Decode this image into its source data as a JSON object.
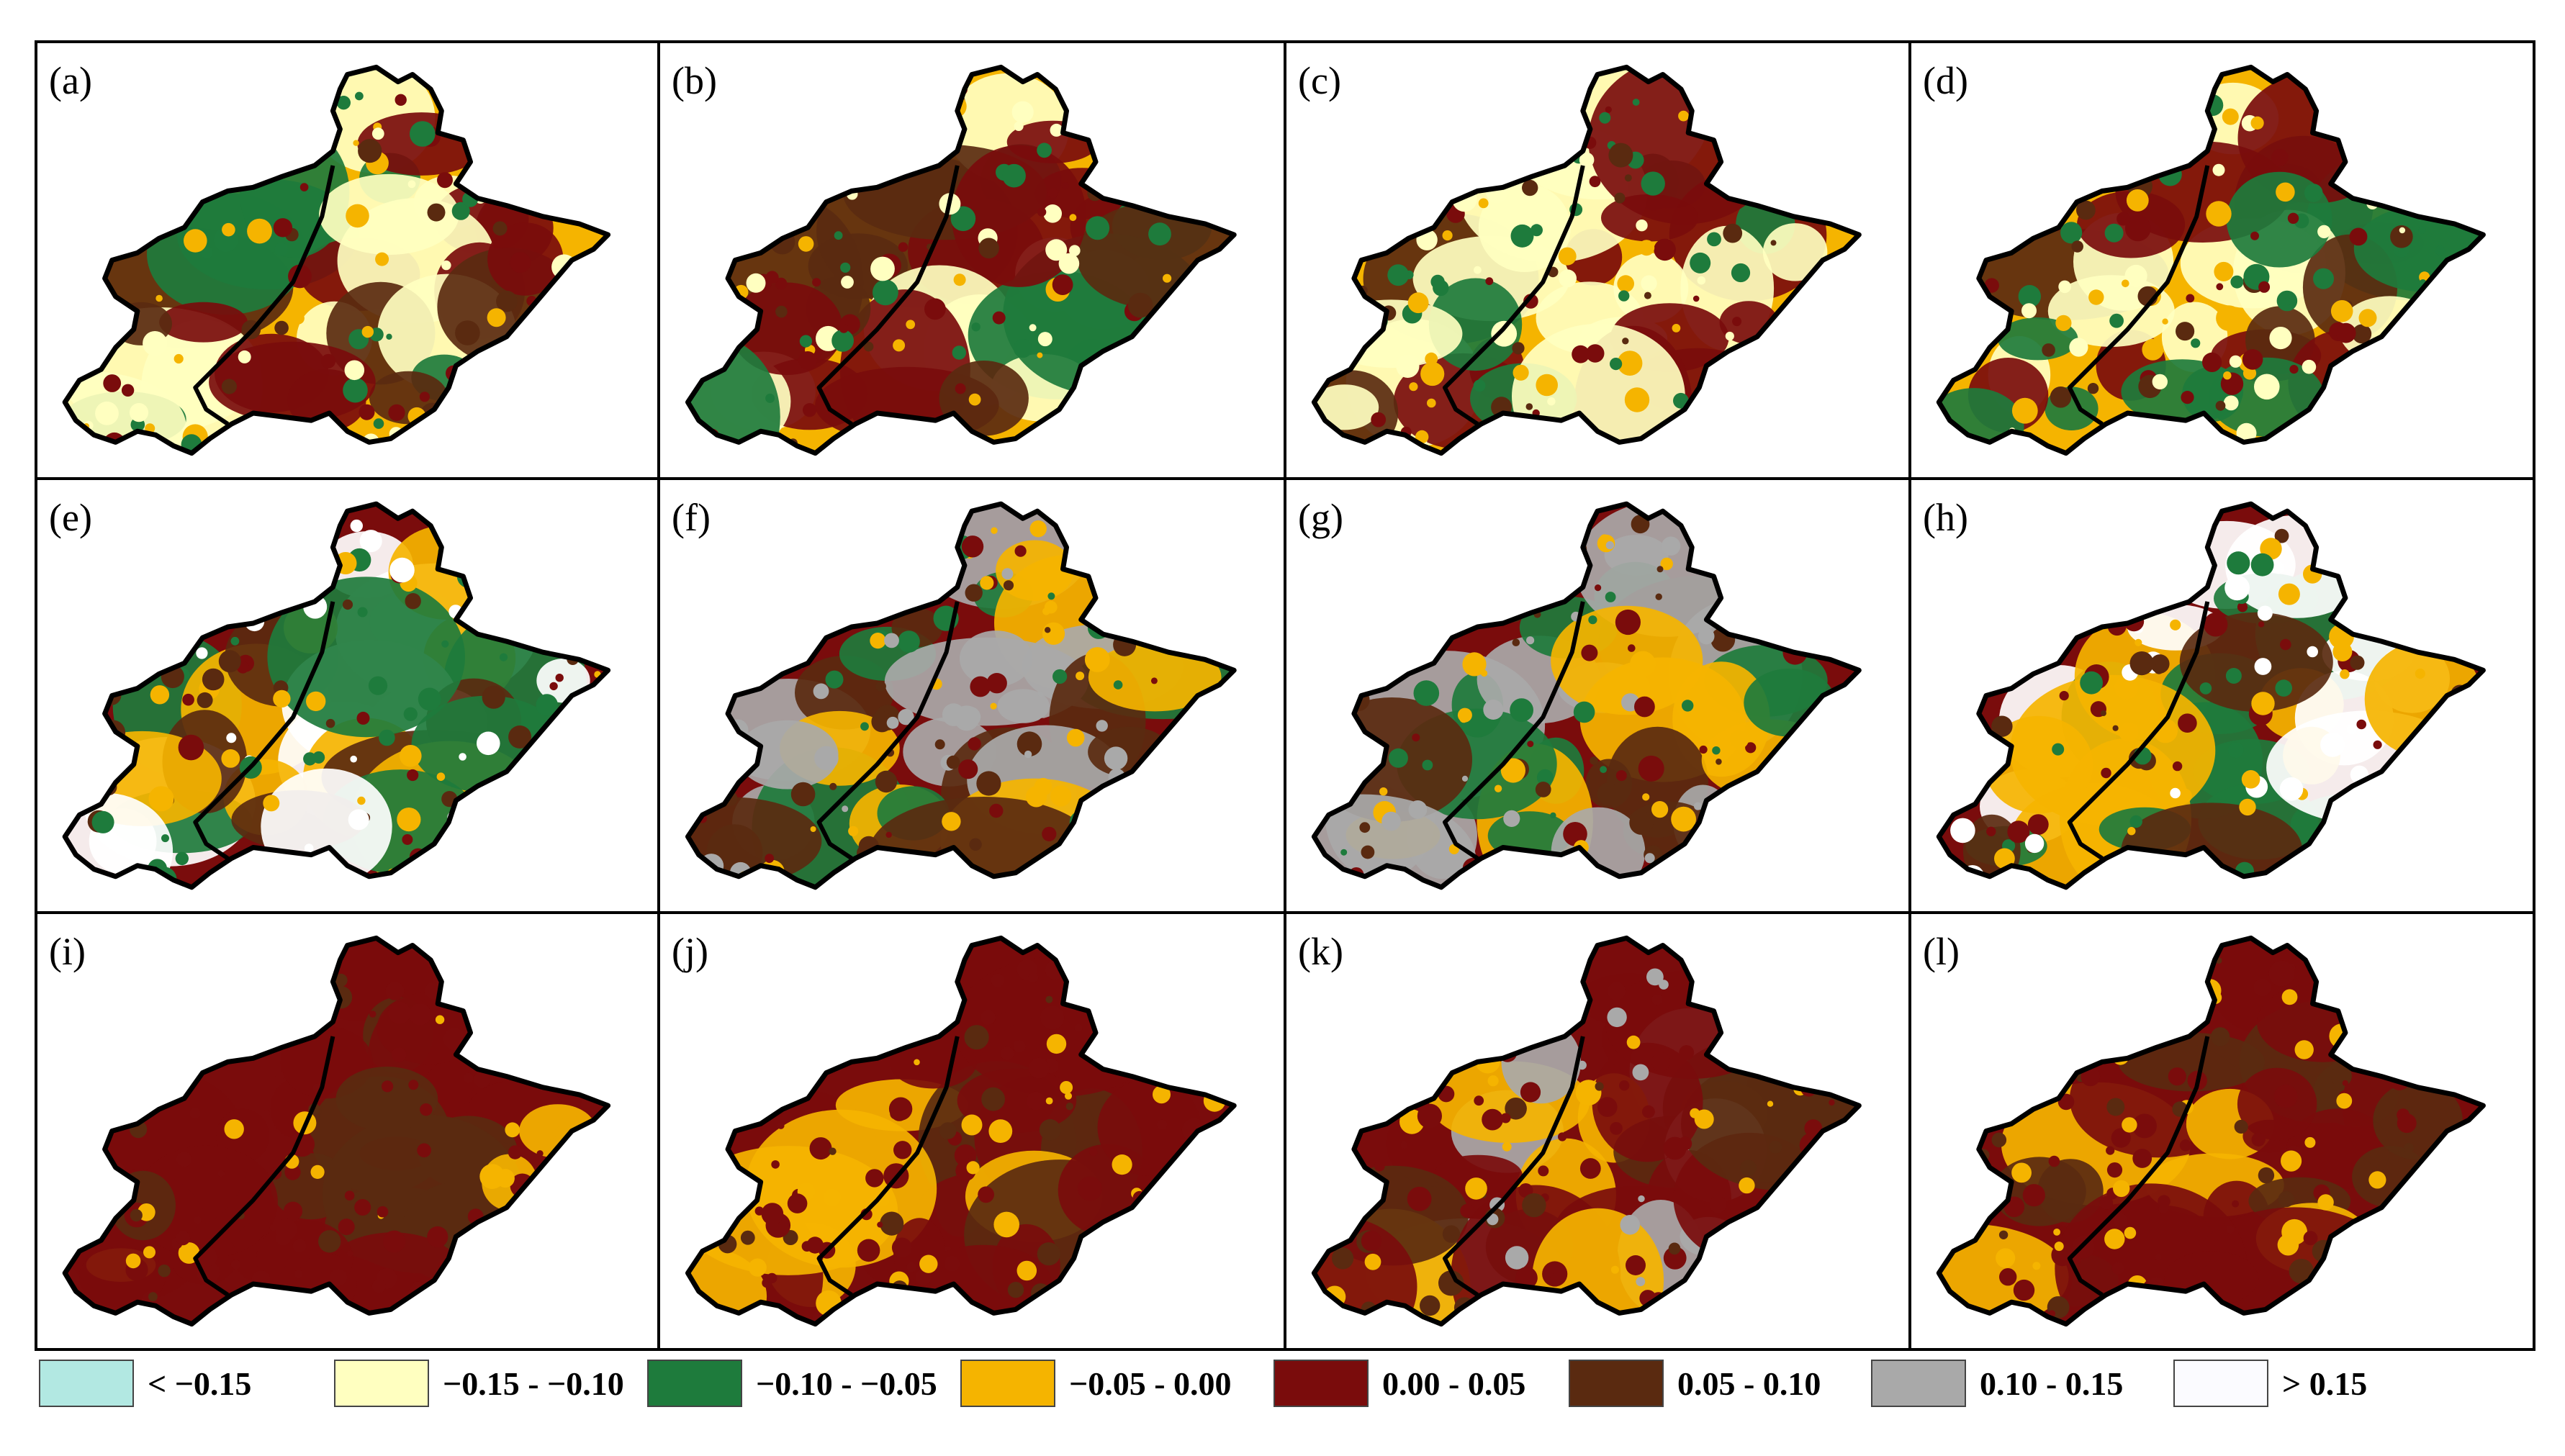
{
  "figure": {
    "panels": [
      {
        "label": "(a)",
        "palette": [
          "#F5B400",
          "#7A0C0C",
          "#1E7B3C",
          "#5A2A10",
          "#FFFFC0"
        ]
      },
      {
        "label": "(b)",
        "palette": [
          "#F5B400",
          "#7A0C0C",
          "#1E7B3C",
          "#5A2A10",
          "#FFFFC0"
        ]
      },
      {
        "label": "(c)",
        "palette": [
          "#F5B400",
          "#7A0C0C",
          "#1E7B3C",
          "#5A2A10",
          "#FFFFC0"
        ]
      },
      {
        "label": "(d)",
        "palette": [
          "#F5B400",
          "#7A0C0C",
          "#1E7B3C",
          "#5A2A10",
          "#FFFFC0"
        ]
      },
      {
        "label": "(e)",
        "palette": [
          "#7A0C0C",
          "#F5B400",
          "#5A2A10",
          "#1E7B3C",
          "#FFFFFF"
        ]
      },
      {
        "label": "(f)",
        "palette": [
          "#7A0C0C",
          "#F5B400",
          "#5A2A10",
          "#1E7B3C",
          "#A9A9A9"
        ]
      },
      {
        "label": "(g)",
        "palette": [
          "#7A0C0C",
          "#F5B400",
          "#5A2A10",
          "#1E7B3C",
          "#A9A9A9"
        ]
      },
      {
        "label": "(h)",
        "palette": [
          "#7A0C0C",
          "#F5B400",
          "#5A2A10",
          "#1E7B3C",
          "#FFFFFF"
        ]
      },
      {
        "label": "(i)",
        "palette": [
          "#7A0C0C",
          "#7A0C0C",
          "#F5B400",
          "#5A2A10",
          "#7A0C0C"
        ]
      },
      {
        "label": "(j)",
        "palette": [
          "#7A0C0C",
          "#7A0C0C",
          "#F5B400",
          "#5A2A10",
          "#7A0C0C"
        ]
      },
      {
        "label": "(k)",
        "palette": [
          "#7A0C0C",
          "#5A2A10",
          "#A9A9A9",
          "#F5B400",
          "#7A0C0C"
        ]
      },
      {
        "label": "(l)",
        "palette": [
          "#7A0C0C",
          "#7A0C0C",
          "#F5B400",
          "#5A2A10",
          "#7A0C0C"
        ]
      }
    ]
  },
  "legend": {
    "items": [
      {
        "label": "< −0.15",
        "color": "#B2E8E2"
      },
      {
        "label": "−0.15 - −0.10",
        "color": "#FFFFC0"
      },
      {
        "label": "−0.10 - −0.05",
        "color": "#1E7B3C"
      },
      {
        "label": "−0.05 - 0.00",
        "color": "#F5B400"
      },
      {
        "label": "0.00 - 0.05",
        "color": "#7A0C0C"
      },
      {
        "label": "0.05 - 0.10",
        "color": "#5A2A10"
      },
      {
        "label": "0.10 - 0.15",
        "color": "#A9A9A9"
      },
      {
        "label": "> 0.15",
        "color": "#FBFBFF"
      }
    ]
  }
}
